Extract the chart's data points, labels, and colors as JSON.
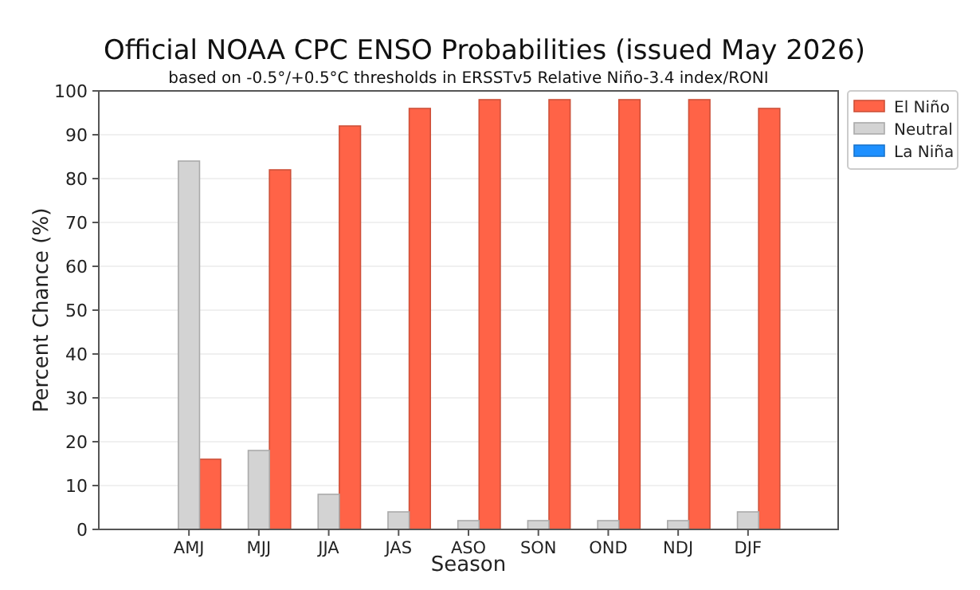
{
  "chart_data": {
    "type": "bar",
    "title": "Official NOAA CPC ENSO Probabilities (issued May 2026)",
    "subtitle": "based on -0.5°/+0.5°C thresholds in ERSSTv5 Relative Niño-3.4 index/RONI",
    "xlabel": "Season",
    "ylabel": "Percent Chance (%)",
    "categories": [
      "AMJ",
      "MJJ",
      "JJA",
      "JAS",
      "ASO",
      "SON",
      "OND",
      "NDJ",
      "DJF"
    ],
    "series": [
      {
        "name": "El Niño",
        "color": "#ff6347",
        "values": [
          16,
          82,
          92,
          96,
          98,
          98,
          98,
          98,
          96
        ]
      },
      {
        "name": "Neutral",
        "color": "#d3d3d3",
        "values": [
          84,
          18,
          8,
          4,
          2,
          2,
          2,
          2,
          4
        ]
      },
      {
        "name": "La Niña",
        "color": "#1e90ff",
        "values": [
          0,
          0,
          0,
          0,
          0,
          0,
          0,
          0,
          0
        ]
      }
    ],
    "ylim": [
      0,
      100
    ],
    "yticks": [
      0,
      10,
      20,
      30,
      40,
      50,
      60,
      70,
      80,
      90,
      100
    ],
    "grid": "y",
    "legend": "top right"
  }
}
